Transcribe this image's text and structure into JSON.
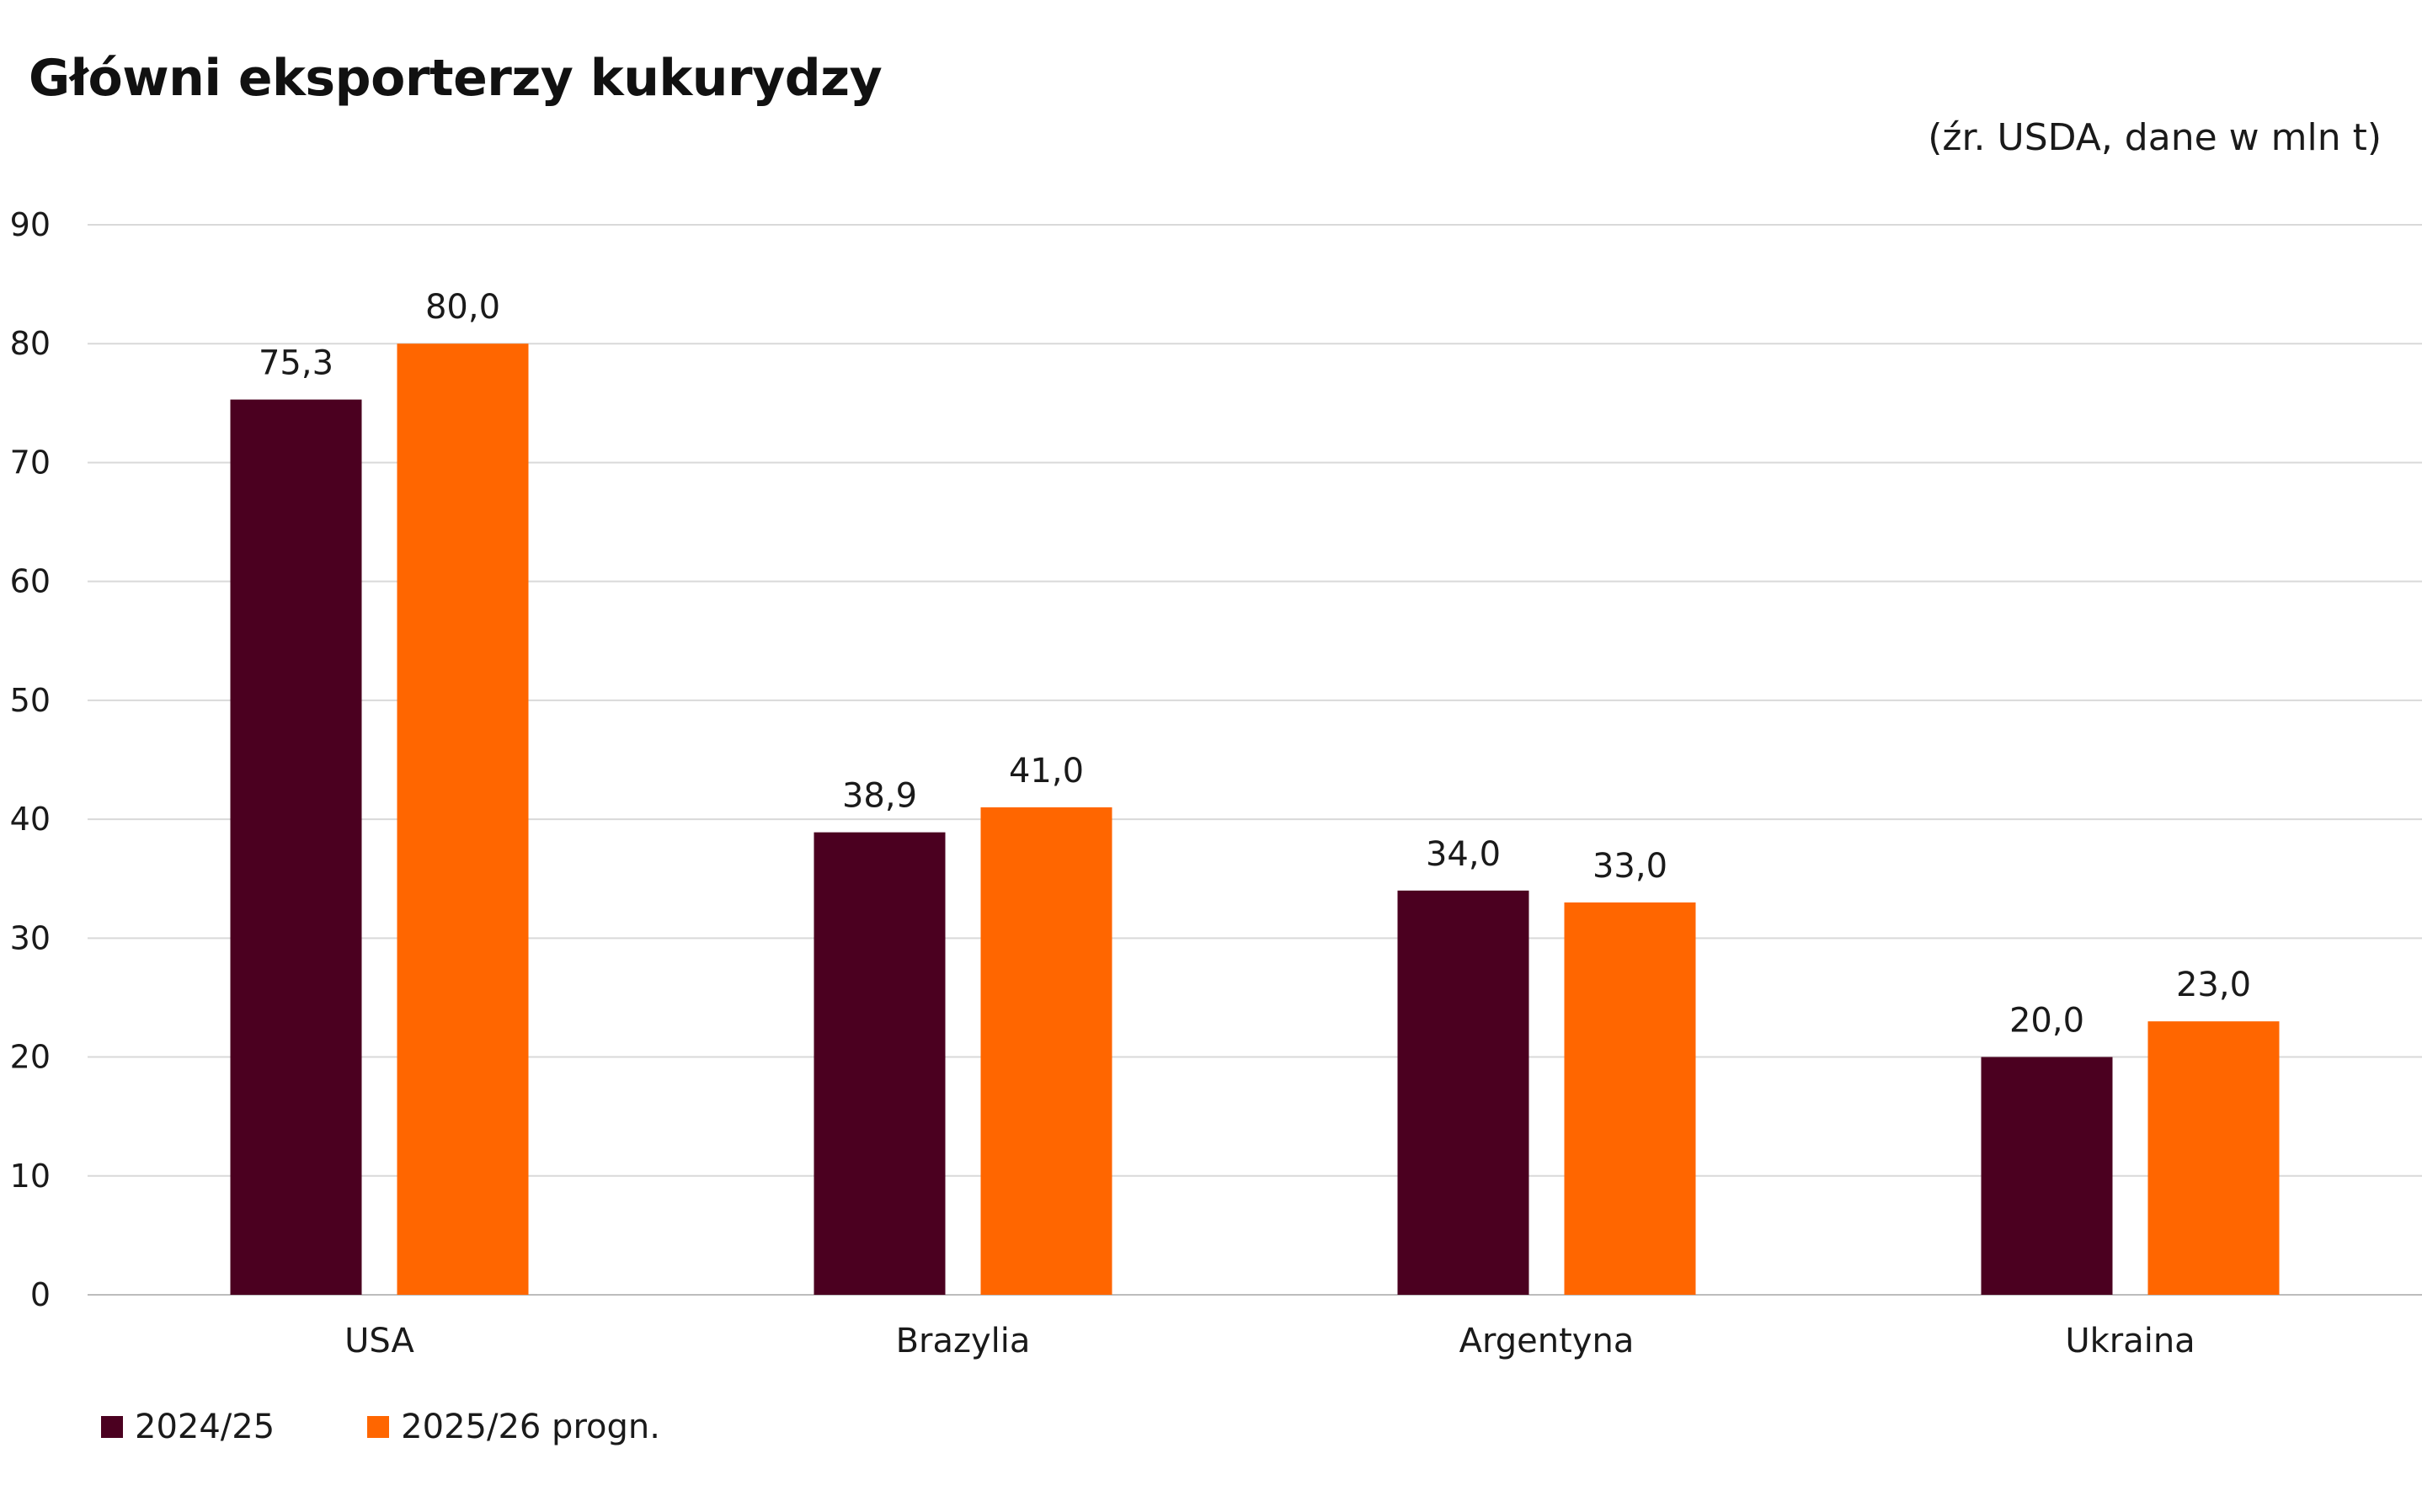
{
  "chart_data": {
    "type": "bar",
    "title": "Główni eksporterzy kukurydzy",
    "subtitle": "(źr. USDA, dane w mln t)",
    "categories": [
      "USA",
      "Brazylia",
      "Argentyna",
      "Ukraina"
    ],
    "series": [
      {
        "name": "2024/25",
        "color": "#4b0020",
        "values": [
          75.3,
          38.9,
          34.0,
          20.0
        ],
        "labels": [
          "75,3",
          "38,9",
          "34,0",
          "20,0"
        ]
      },
      {
        "name": "2025/26 progn.",
        "color": "#ff6600",
        "values": [
          80.0,
          41.0,
          33.0,
          23.0
        ],
        "labels": [
          "80,0",
          "41,0",
          "33,0",
          "23,0"
        ]
      }
    ],
    "ylim": [
      0,
      90
    ],
    "yticks": [
      0,
      10,
      20,
      30,
      40,
      50,
      60,
      70,
      80,
      90
    ],
    "grid": true,
    "legend": "bottom-left"
  }
}
